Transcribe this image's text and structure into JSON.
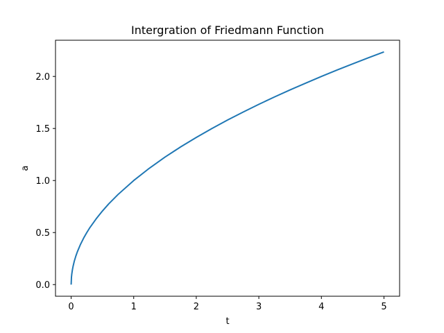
{
  "chart_data": {
    "type": "line",
    "title": "Intergration of Friedmann Function",
    "xlabel": "t",
    "ylabel": "a",
    "xlim": [
      -0.25,
      5.25
    ],
    "ylim": [
      -0.1118,
      2.3479
    ],
    "xticks": [
      0,
      1,
      2,
      3,
      4,
      5
    ],
    "xtick_labels": [
      "0",
      "1",
      "2",
      "3",
      "4",
      "5"
    ],
    "yticks": [
      0.0,
      0.5,
      1.0,
      1.5,
      2.0
    ],
    "ytick_labels": [
      "0.0",
      "0.5",
      "1.0",
      "1.5",
      "2.0"
    ],
    "grid": false,
    "legend": "none",
    "series": [
      {
        "color": "#1f77b4",
        "x": [
          0,
          0.005,
          0.01,
          0.02,
          0.03,
          0.05,
          0.075,
          0.1,
          0.15,
          0.2,
          0.25,
          0.3,
          0.4,
          0.5,
          0.6,
          0.75,
          1.0,
          1.25,
          1.5,
          1.75,
          2.0,
          2.25,
          2.5,
          2.75,
          3.0,
          3.25,
          3.5,
          3.75,
          4.0,
          4.25,
          4.5,
          4.75,
          5.0
        ],
        "y": [
          0,
          0.071,
          0.1,
          0.141,
          0.173,
          0.224,
          0.274,
          0.316,
          0.387,
          0.447,
          0.5,
          0.548,
          0.632,
          0.707,
          0.775,
          0.866,
          1.0,
          1.118,
          1.225,
          1.323,
          1.414,
          1.5,
          1.581,
          1.658,
          1.732,
          1.803,
          1.871,
          1.936,
          2.0,
          2.062,
          2.121,
          2.179,
          2.236
        ]
      }
    ]
  }
}
